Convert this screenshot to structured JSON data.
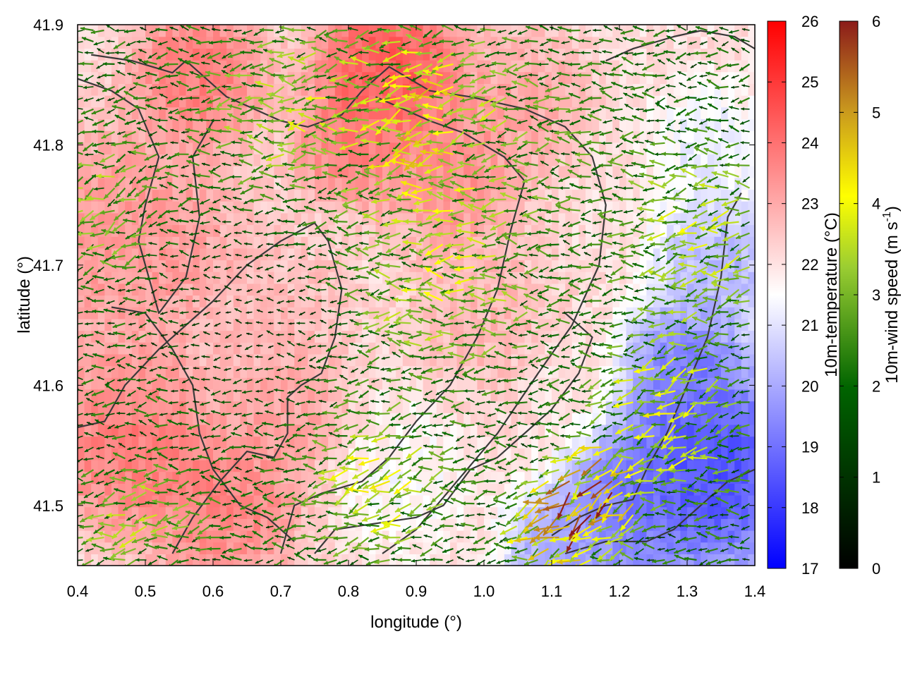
{
  "chart_data": {
    "type": "heatmap",
    "subtype": "temperature field with wind vectors and terrain contours",
    "xlabel": "longitude (°)",
    "ylabel": "latitude (°)",
    "xlim": [
      0.4,
      1.4
    ],
    "ylim": [
      41.45,
      41.9
    ],
    "x_ticks": [
      "0.4",
      "0.5",
      "0.6",
      "0.7",
      "0.8",
      "0.9",
      "1.0",
      "1.1",
      "1.2",
      "1.3",
      "1.4"
    ],
    "y_ticks": [
      "41.5",
      "41.6",
      "41.7",
      "41.8",
      "41.9"
    ],
    "grid": false,
    "colorbars": [
      {
        "label": "10m-temperature (°C)",
        "range": [
          17,
          26
        ],
        "ticks": [
          "17",
          "18",
          "19",
          "20",
          "21",
          "22",
          "23",
          "24",
          "25",
          "26"
        ],
        "colors": [
          "#0000ff",
          "#ffffff",
          "#ff0000"
        ]
      },
      {
        "label_main": "10m-wind speed (m s",
        "label_sup": "-1",
        "label_end": ")",
        "range": [
          0,
          6
        ],
        "ticks": [
          "0",
          "1",
          "2",
          "3",
          "4",
          "5",
          "6"
        ],
        "colors": [
          "#000000",
          "#006400",
          "#9acd32",
          "#ffff00",
          "#c8961e",
          "#8b1a1a"
        ]
      }
    ],
    "temperature_regions": [
      {
        "lon": 0.48,
        "lat": 41.72,
        "t": 23.6,
        "r": 0.12
      },
      {
        "lon": 0.58,
        "lat": 41.86,
        "t": 24.2,
        "r": 0.07
      },
      {
        "lon": 0.86,
        "lat": 41.86,
        "t": 25.0,
        "r": 0.08
      },
      {
        "lon": 0.8,
        "lat": 41.8,
        "t": 24.0,
        "r": 0.06
      },
      {
        "lon": 0.7,
        "lat": 41.66,
        "t": 22.8,
        "r": 0.08
      },
      {
        "lon": 0.48,
        "lat": 41.55,
        "t": 24.2,
        "r": 0.09
      },
      {
        "lon": 0.62,
        "lat": 41.5,
        "t": 24.0,
        "r": 0.08
      },
      {
        "lon": 0.7,
        "lat": 41.58,
        "t": 23.4,
        "r": 0.07
      },
      {
        "lon": 0.95,
        "lat": 41.78,
        "t": 23.8,
        "r": 0.08
      },
      {
        "lon": 1.0,
        "lat": 41.66,
        "t": 22.9,
        "r": 0.08
      },
      {
        "lon": 0.88,
        "lat": 41.52,
        "t": 21.4,
        "r": 0.07
      },
      {
        "lon": 1.06,
        "lat": 41.84,
        "t": 23.2,
        "r": 0.07
      },
      {
        "lon": 1.12,
        "lat": 41.6,
        "t": 22.0,
        "r": 0.05
      },
      {
        "lon": 1.33,
        "lat": 41.53,
        "t": 17.5,
        "r": 0.11
      },
      {
        "lon": 1.2,
        "lat": 41.49,
        "t": 18.8,
        "r": 0.07
      },
      {
        "lon": 1.35,
        "lat": 41.7,
        "t": 19.8,
        "r": 0.07
      },
      {
        "lon": 1.3,
        "lat": 41.62,
        "t": 18.8,
        "r": 0.06
      },
      {
        "lon": 1.33,
        "lat": 41.8,
        "t": 21.0,
        "r": 0.06
      },
      {
        "lon": 1.1,
        "lat": 41.47,
        "t": 19.5,
        "r": 0.05
      }
    ],
    "wind_regions": [
      {
        "lon": 0.92,
        "lat": 41.82,
        "speed": 4.2,
        "dir_deg": 200,
        "r": 0.09
      },
      {
        "lon": 0.72,
        "lat": 41.83,
        "speed": 3.3,
        "dir_deg": 185,
        "r": 0.08
      },
      {
        "lon": 0.95,
        "lat": 41.7,
        "speed": 3.4,
        "dir_deg": 180,
        "r": 0.1
      },
      {
        "lon": 0.85,
        "lat": 41.52,
        "speed": 3.6,
        "dir_deg": 205,
        "r": 0.07
      },
      {
        "lon": 1.17,
        "lat": 41.51,
        "speed": 5.6,
        "dir_deg": 235,
        "r": 0.05
      },
      {
        "lon": 1.12,
        "lat": 41.48,
        "speed": 5.0,
        "dir_deg": 225,
        "r": 0.05
      },
      {
        "lon": 1.28,
        "lat": 41.58,
        "speed": 3.6,
        "dir_deg": 210,
        "r": 0.08
      },
      {
        "lon": 1.32,
        "lat": 41.72,
        "speed": 3.4,
        "dir_deg": 195,
        "r": 0.08
      },
      {
        "lon": 0.45,
        "lat": 41.75,
        "speed": 3.0,
        "dir_deg": 210,
        "r": 0.06
      },
      {
        "lon": 0.5,
        "lat": 41.48,
        "speed": 3.2,
        "dir_deg": 195,
        "r": 0.06
      },
      {
        "lon": 0.65,
        "lat": 41.66,
        "speed": 0.6,
        "dir_deg": 180,
        "r": 0.09
      },
      {
        "lon": 1.1,
        "lat": 41.8,
        "speed": 2.5,
        "dir_deg": 180,
        "r": 0.08
      }
    ],
    "contours": [
      [
        [
          0.4,
          41.855
        ],
        [
          0.45,
          41.845
        ],
        [
          0.49,
          41.83
        ],
        [
          0.52,
          41.79
        ],
        [
          0.5,
          41.75
        ],
        [
          0.49,
          41.72
        ],
        [
          0.52,
          41.66
        ],
        [
          0.56,
          41.69
        ],
        [
          0.58,
          41.74
        ],
        [
          0.57,
          41.79
        ],
        [
          0.6,
          41.82
        ]
      ],
      [
        [
          0.42,
          41.875
        ],
        [
          0.48,
          41.87
        ],
        [
          0.54,
          41.86
        ],
        [
          0.56,
          41.87
        ],
        [
          0.59,
          41.855
        ],
        [
          0.62,
          41.84
        ],
        [
          0.66,
          41.83
        ],
        [
          0.7,
          41.82
        ],
        [
          0.74,
          41.815
        ],
        [
          0.79,
          41.825
        ],
        [
          0.82,
          41.845
        ],
        [
          0.86,
          41.865
        ],
        [
          0.92,
          41.845
        ],
        [
          0.98,
          41.84
        ],
        [
          1.02,
          41.835
        ],
        [
          1.06,
          41.83
        ],
        [
          1.12,
          41.815
        ],
        [
          1.16,
          41.79
        ],
        [
          1.18,
          41.75
        ],
        [
          1.17,
          41.7
        ],
        [
          1.13,
          41.65
        ],
        [
          1.08,
          41.61
        ],
        [
          1.02,
          41.56
        ],
        [
          0.96,
          41.52
        ],
        [
          0.9,
          41.48
        ],
        [
          0.85,
          41.46
        ]
      ],
      [
        [
          0.4,
          41.565
        ],
        [
          0.44,
          41.57
        ],
        [
          0.47,
          41.6
        ],
        [
          0.52,
          41.63
        ],
        [
          0.56,
          41.65
        ],
        [
          0.6,
          41.67
        ],
        [
          0.65,
          41.7
        ],
        [
          0.7,
          41.72
        ],
        [
          0.75,
          41.735
        ],
        [
          0.77,
          41.72
        ],
        [
          0.79,
          41.68
        ],
        [
          0.78,
          41.64
        ],
        [
          0.76,
          41.61
        ],
        [
          0.73,
          41.6
        ],
        [
          0.71,
          41.59
        ],
        [
          0.71,
          41.56
        ],
        [
          0.69,
          41.54
        ],
        [
          0.65,
          41.545
        ],
        [
          0.61,
          41.52
        ],
        [
          0.57,
          41.49
        ],
        [
          0.54,
          41.46
        ]
      ],
      [
        [
          0.7,
          41.46
        ],
        [
          0.72,
          41.5
        ],
        [
          0.76,
          41.51
        ],
        [
          0.82,
          41.52
        ],
        [
          0.86,
          41.54
        ],
        [
          0.9,
          41.57
        ],
        [
          0.95,
          41.6
        ],
        [
          0.99,
          41.64
        ],
        [
          1.02,
          41.68
        ],
        [
          1.04,
          41.73
        ],
        [
          1.06,
          41.77
        ],
        [
          1.03,
          41.79
        ],
        [
          0.97,
          41.81
        ],
        [
          0.92,
          41.82
        ],
        [
          0.88,
          41.83
        ],
        [
          0.84,
          41.84
        ]
      ],
      [
        [
          0.75,
          41.46
        ],
        [
          0.78,
          41.48
        ],
        [
          0.84,
          41.485
        ],
        [
          0.9,
          41.49
        ],
        [
          0.94,
          41.5
        ],
        [
          0.98,
          41.53
        ],
        [
          1.02,
          41.54
        ],
        [
          1.06,
          41.56
        ],
        [
          1.1,
          41.58
        ],
        [
          1.14,
          41.61
        ],
        [
          1.16,
          41.64
        ],
        [
          1.12,
          41.66
        ]
      ],
      [
        [
          1.1,
          41.475
        ],
        [
          1.14,
          41.49
        ],
        [
          1.18,
          41.5
        ],
        [
          1.22,
          41.505
        ],
        [
          1.24,
          41.53
        ],
        [
          1.27,
          41.56
        ],
        [
          1.3,
          41.6
        ],
        [
          1.33,
          41.64
        ],
        [
          1.35,
          41.69
        ],
        [
          1.36,
          41.74
        ],
        [
          1.38,
          41.76
        ]
      ],
      [
        [
          1.12,
          41.46
        ],
        [
          1.18,
          41.47
        ],
        [
          1.24,
          41.47
        ],
        [
          1.28,
          41.48
        ],
        [
          1.32,
          41.5
        ],
        [
          1.36,
          41.52
        ],
        [
          1.4,
          41.53
        ]
      ],
      [
        [
          0.45,
          41.665
        ],
        [
          0.5,
          41.66
        ],
        [
          0.54,
          41.63
        ],
        [
          0.57,
          41.6
        ],
        [
          0.58,
          41.56
        ],
        [
          0.6,
          41.53
        ],
        [
          0.64,
          41.5
        ],
        [
          0.68,
          41.49
        ],
        [
          0.72,
          41.47
        ]
      ],
      [
        [
          1.18,
          41.87
        ],
        [
          1.22,
          41.88
        ],
        [
          1.28,
          41.89
        ],
        [
          1.32,
          41.895
        ],
        [
          1.37,
          41.89
        ],
        [
          1.4,
          41.88
        ]
      ]
    ]
  }
}
